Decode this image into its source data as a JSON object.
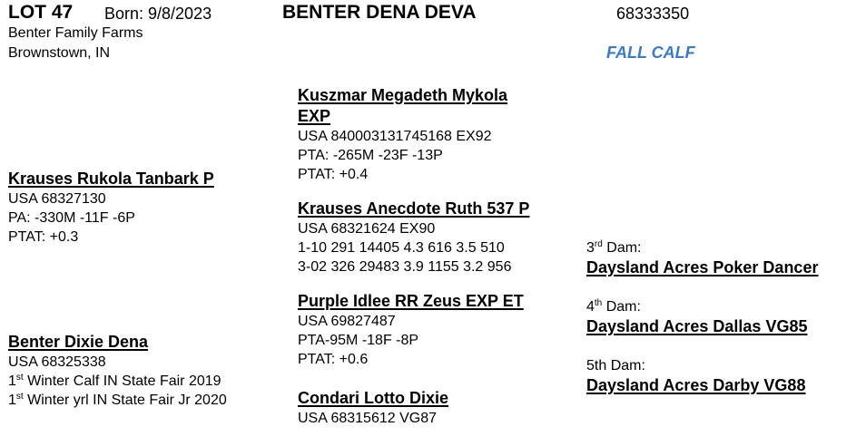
{
  "header": {
    "lot": "LOT 47",
    "born": "Born: 9/8/2023",
    "name": "BENTER DENA DEVA",
    "reg": "68333350",
    "consignor": "Benter Family Farms",
    "location": "Brownstown, IN",
    "class": "FALL CALF",
    "class_color": "#3b7bc4"
  },
  "sire": {
    "name": "Krauses Rukola Tanbark P",
    "lines": [
      "USA 68327130",
      "PA: -330M  -11F  -6P",
      "PTAT: +0.3"
    ]
  },
  "sire_sire": {
    "name_line1": "Kuszmar Megadeth Mykola",
    "name_line2": "EXP",
    "lines": [
      "USA 840003131745168  EX92",
      "PTA: -265M  -23F  -13P",
      "PTAT: +0.4"
    ]
  },
  "sire_dam": {
    "name": "Krauses Anecdote Ruth 537 P",
    "lines": [
      "USA  68321624  EX90",
      "1-10 291 14405 4.3   616 3.5 510",
      "3-02 326 29483 3.9 1155 3.2 956"
    ]
  },
  "dam": {
    "name": "Benter Dixie Dena",
    "reg": "USA  68325338",
    "awards": [
      {
        "num": "1",
        "sup": "st",
        "text": " Winter Calf IN State Fair 2019"
      },
      {
        "num": "1",
        "sup": "st",
        "text": " Winter yrl IN State Fair Jr  2020"
      }
    ]
  },
  "dam_sire": {
    "name": "Purple Idlee RR Zeus EXP ET",
    "lines": [
      "USA 69827487",
      "PTA-95M  -18F  -8P",
      "PTAT: +0.6"
    ]
  },
  "dam_dam": {
    "name": "Condari Lotto Dixie",
    "lines": [
      "USA  68315612 VG87"
    ]
  },
  "dams": [
    {
      "label_num": "3",
      "label_sup": "rd",
      "label_text": " Dam:",
      "name": "Daysland Acres Poker Dancer"
    },
    {
      "label_num": "4",
      "label_sup": "th",
      "label_text": " Dam:",
      "name": "Daysland Acres Dallas VG85"
    },
    {
      "label_num": "5th Dam:",
      "label_sup": "",
      "label_text": "",
      "name": "Daysland Acres Darby VG88"
    }
  ]
}
